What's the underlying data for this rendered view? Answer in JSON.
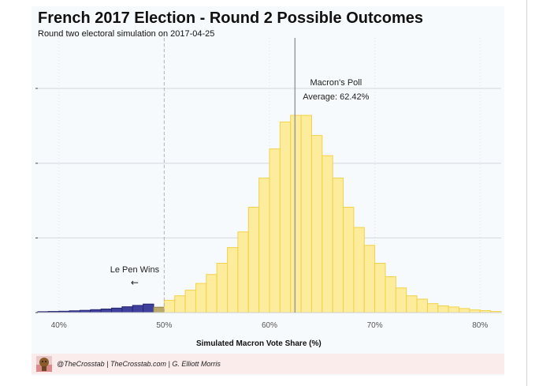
{
  "header": {
    "title": "French 2017 Election - Round 2 Possible Outcomes",
    "subtitle": "Round two electoral simulation on 2017-04-25"
  },
  "footer": {
    "credits": "@TheCrosstab | TheCrosstab.com | G. Elliott Morris"
  },
  "colors": {
    "macron_fill": "#fcec9b",
    "macron_stroke": "#f2d24a",
    "lepen_fill": "#3f3f9d",
    "lepen_stroke": "#25256e",
    "boundary_fill": "#b9a96a",
    "boundary_stroke": "#8f8150",
    "gridline": "#d3d7dc",
    "mean_line": "#9b9b9b",
    "threshold_line": "#b3b3b3",
    "footer_bg": "#fbecec"
  },
  "chart_data": {
    "type": "bar",
    "title": "French 2017 Election - Round 2 Possible Outcomes",
    "subtitle": "Round two electoral simulation on 2017-04-25",
    "xlabel": "Simulated Macron Vote Share (%)",
    "ylabel": "",
    "xlim": [
      38,
      82
    ],
    "ylim": [
      0,
      100
    ],
    "x_ticks": [
      40,
      50,
      60,
      70,
      80
    ],
    "x_tick_labels": [
      "40%",
      "50%",
      "60%",
      "70%",
      "80%"
    ],
    "y_tick_labels_shown": false,
    "grid": "horizontal",
    "bin_width": 1,
    "bins": [
      {
        "x0": 38,
        "value": 0.4,
        "group": "lepen"
      },
      {
        "x0": 39,
        "value": 0.5,
        "group": "lepen"
      },
      {
        "x0": 40,
        "value": 0.6,
        "group": "lepen"
      },
      {
        "x0": 41,
        "value": 0.8,
        "group": "lepen"
      },
      {
        "x0": 42,
        "value": 1.0,
        "group": "lepen"
      },
      {
        "x0": 43,
        "value": 1.3,
        "group": "lepen"
      },
      {
        "x0": 44,
        "value": 1.6,
        "group": "lepen"
      },
      {
        "x0": 45,
        "value": 2.0,
        "group": "lepen"
      },
      {
        "x0": 46,
        "value": 2.6,
        "group": "lepen"
      },
      {
        "x0": 47,
        "value": 3.2,
        "group": "lepen"
      },
      {
        "x0": 48,
        "value": 3.8,
        "group": "lepen"
      },
      {
        "x0": 49,
        "value": 2.4,
        "group": "boundary"
      },
      {
        "x0": 50,
        "value": 5.5,
        "group": "macron"
      },
      {
        "x0": 51,
        "value": 7.5,
        "group": "macron"
      },
      {
        "x0": 52,
        "value": 10,
        "group": "macron"
      },
      {
        "x0": 53,
        "value": 13,
        "group": "macron"
      },
      {
        "x0": 54,
        "value": 17,
        "group": "macron"
      },
      {
        "x0": 55,
        "value": 22,
        "group": "macron"
      },
      {
        "x0": 56,
        "value": 29,
        "group": "macron"
      },
      {
        "x0": 57,
        "value": 36,
        "group": "macron"
      },
      {
        "x0": 58,
        "value": 47,
        "group": "macron"
      },
      {
        "x0": 59,
        "value": 60,
        "group": "macron"
      },
      {
        "x0": 60,
        "value": 73,
        "group": "macron"
      },
      {
        "x0": 61,
        "value": 85,
        "group": "macron"
      },
      {
        "x0": 62,
        "value": 88,
        "group": "macron"
      },
      {
        "x0": 63,
        "value": 88,
        "group": "macron"
      },
      {
        "x0": 64,
        "value": 79,
        "group": "macron"
      },
      {
        "x0": 65,
        "value": 70,
        "group": "macron"
      },
      {
        "x0": 66,
        "value": 60,
        "group": "macron"
      },
      {
        "x0": 67,
        "value": 47,
        "group": "macron"
      },
      {
        "x0": 68,
        "value": 38,
        "group": "macron"
      },
      {
        "x0": 69,
        "value": 30,
        "group": "macron"
      },
      {
        "x0": 70,
        "value": 22,
        "group": "macron"
      },
      {
        "x0": 71,
        "value": 16,
        "group": "macron"
      },
      {
        "x0": 72,
        "value": 11,
        "group": "macron"
      },
      {
        "x0": 73,
        "value": 7.5,
        "group": "macron"
      },
      {
        "x0": 74,
        "value": 6,
        "group": "macron"
      },
      {
        "x0": 75,
        "value": 4,
        "group": "macron"
      },
      {
        "x0": 76,
        "value": 3,
        "group": "macron"
      },
      {
        "x0": 77,
        "value": 2.5,
        "group": "macron"
      },
      {
        "x0": 78,
        "value": 1.8,
        "group": "macron"
      },
      {
        "x0": 79,
        "value": 1.2,
        "group": "macron"
      },
      {
        "x0": 80,
        "value": 0.9,
        "group": "macron"
      },
      {
        "x0": 81,
        "value": 0.5,
        "group": "macron"
      }
    ],
    "gridlines_y": [
      0,
      33.3,
      66.6,
      100
    ],
    "reference_lines": [
      {
        "x": 50,
        "style": "dashed"
      },
      {
        "x": 62.42,
        "style": "solid"
      }
    ],
    "annotations": {
      "poll_line1": "Macron's Poll",
      "poll_line2": "Average: 62.42%",
      "lepen_label": "Le Pen Wins",
      "lepen_arrow": "←"
    }
  }
}
